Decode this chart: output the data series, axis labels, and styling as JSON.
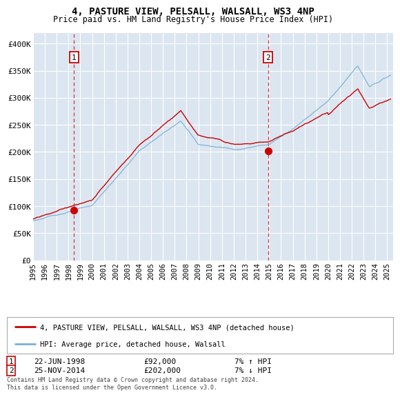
{
  "title": "4, PASTURE VIEW, PELSALL, WALSALL, WS3 4NP",
  "subtitle": "Price paid vs. HM Land Registry's House Price Index (HPI)",
  "ylabel_ticks": [
    "£0",
    "£50K",
    "£100K",
    "£150K",
    "£200K",
    "£250K",
    "£300K",
    "£350K",
    "£400K"
  ],
  "ytick_values": [
    0,
    50000,
    100000,
    150000,
    200000,
    250000,
    300000,
    350000,
    400000
  ],
  "ylim": [
    0,
    420000
  ],
  "sale1": {
    "date_label": "22-JUN-1998",
    "price": 92000,
    "hpi_note": "7% ↑ HPI",
    "year_x": 1998.47
  },
  "sale2": {
    "date_label": "25-NOV-2014",
    "price": 202000,
    "hpi_note": "7% ↓ HPI",
    "year_x": 2014.9
  },
  "legend_line1": "4, PASTURE VIEW, PELSALL, WALSALL, WS3 4NP (detached house)",
  "legend_line2": "HPI: Average price, detached house, Walsall",
  "footer": "Contains HM Land Registry data © Crown copyright and database right 2024.\nThis data is licensed under the Open Government Licence v3.0.",
  "line_color_property": "#cc0000",
  "line_color_hpi": "#7ab0d4",
  "background_color": "#dce6f1",
  "xlim_start": 1995.0,
  "xlim_end": 2025.5
}
